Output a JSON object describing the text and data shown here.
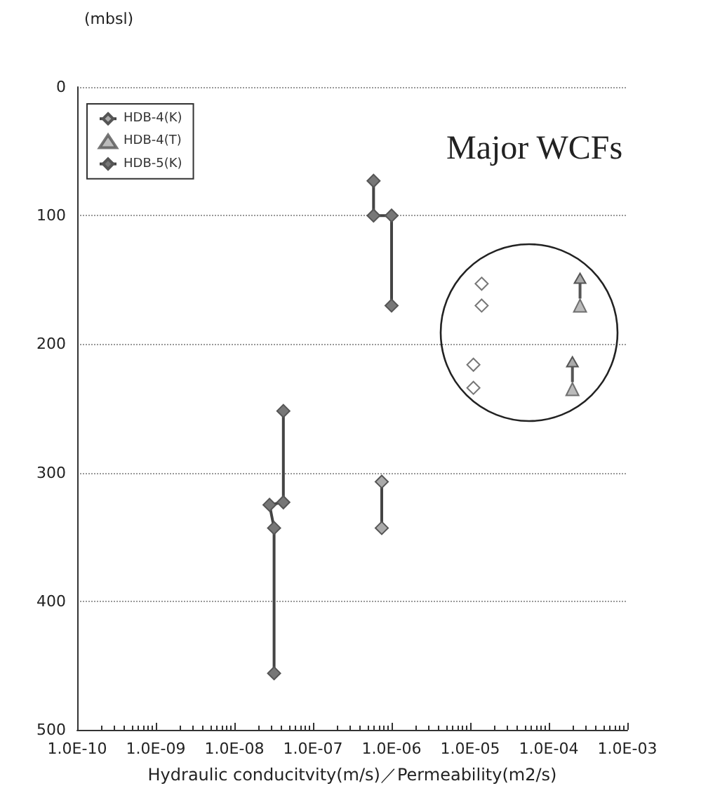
{
  "chart_data": {
    "type": "line",
    "ylabel": "(mbsl)",
    "xlabel": "Hydraulic conducitvity(m/s)／Permeability(m2/s)",
    "annotations": [
      "Major WCFs"
    ],
    "log": "x",
    "xlim": [
      1e-10,
      0.001
    ],
    "xticks": [
      {
        "value": 1e-10,
        "label": "1.0E-10"
      },
      {
        "value": 1e-09,
        "label": "1.0E-09"
      },
      {
        "value": 1e-08,
        "label": "1.0E-08"
      },
      {
        "value": 1e-07,
        "label": "1.0E-07"
      },
      {
        "value": 1e-06,
        "label": "1.0E-06"
      },
      {
        "value": 1e-05,
        "label": "1.0E-05"
      },
      {
        "value": 0.0001,
        "label": "1.0E-04"
      },
      {
        "value": 0.001,
        "label": "1.0E-03"
      }
    ],
    "ylim": [
      500,
      0
    ],
    "yticks": [
      0,
      100,
      200,
      300,
      400,
      500
    ],
    "grid": "y",
    "legend": "top left",
    "series": [
      {
        "name": "HDB-4(K)",
        "marker": "diamond",
        "color": "#aaaaaa",
        "x": [
          7.5e-07,
          7.5e-07
        ],
        "values": [
          307,
          343
        ]
      },
      {
        "name": "HDB-4(T)",
        "type": "scatter",
        "marker": "triangle",
        "color": "#aaaaaa",
        "x": [
          0.00025,
          0.0002
        ],
        "values": [
          170,
          235
        ]
      },
      {
        "name": "HDB-5(K)",
        "marker": "diamond",
        "color": "#777777",
        "x": [
          5.9e-07,
          5.9e-07,
          1e-06,
          1e-06,
          null,
          4.2e-08,
          4.2e-08,
          2.8e-08,
          3.2e-08,
          3.2e-08
        ],
        "values": [
          73,
          100,
          100,
          170,
          null,
          252,
          323,
          325,
          343,
          456
        ]
      },
      {
        "type": "scatter",
        "marker": "diamond",
        "color": "#ffffff",
        "x": [
          1.4e-05,
          1.4e-05,
          1.1e-05,
          1.1e-05
        ],
        "values": [
          153,
          170,
          216,
          234
        ]
      }
    ]
  }
}
